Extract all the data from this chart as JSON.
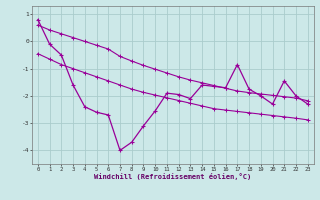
{
  "x": [
    0,
    1,
    2,
    3,
    4,
    5,
    6,
    7,
    8,
    9,
    10,
    11,
    12,
    13,
    14,
    15,
    16,
    17,
    18,
    19,
    20,
    21,
    22,
    23
  ],
  "windchill": [
    0.8,
    -0.1,
    -0.5,
    -1.6,
    -2.4,
    -2.6,
    -2.7,
    -4.0,
    -3.7,
    -3.1,
    -2.55,
    -1.9,
    -1.95,
    -2.1,
    -1.6,
    -1.65,
    -1.7,
    -0.85,
    -1.75,
    -2.0,
    -2.3,
    -1.45,
    -2.0,
    -2.3
  ],
  "line_upper": [
    0.6,
    0.42,
    0.28,
    0.14,
    0.0,
    -0.14,
    -0.28,
    -0.55,
    -0.72,
    -0.88,
    -1.02,
    -1.16,
    -1.3,
    -1.42,
    -1.52,
    -1.62,
    -1.72,
    -1.82,
    -1.88,
    -1.93,
    -1.98,
    -2.03,
    -2.08,
    -2.18
  ],
  "line_lower": [
    -0.45,
    -0.65,
    -0.85,
    -1.0,
    -1.15,
    -1.3,
    -1.45,
    -1.6,
    -1.75,
    -1.87,
    -1.97,
    -2.07,
    -2.17,
    -2.27,
    -2.37,
    -2.47,
    -2.52,
    -2.57,
    -2.62,
    -2.67,
    -2.72,
    -2.77,
    -2.82,
    -2.88
  ],
  "line_color": "#990099",
  "bg_color": "#cce8e8",
  "grid_color": "#aacccc",
  "xlabel": "Windchill (Refroidissement éolien,°C)",
  "ylim": [
    -4.5,
    1.3
  ],
  "xlim": [
    -0.5,
    23.5
  ],
  "yticks": [
    1,
    0,
    -1,
    -2,
    -3,
    -4
  ],
  "xticks": [
    0,
    1,
    2,
    3,
    4,
    5,
    6,
    7,
    8,
    9,
    10,
    11,
    12,
    13,
    14,
    15,
    16,
    17,
    18,
    19,
    20,
    21,
    22,
    23
  ]
}
